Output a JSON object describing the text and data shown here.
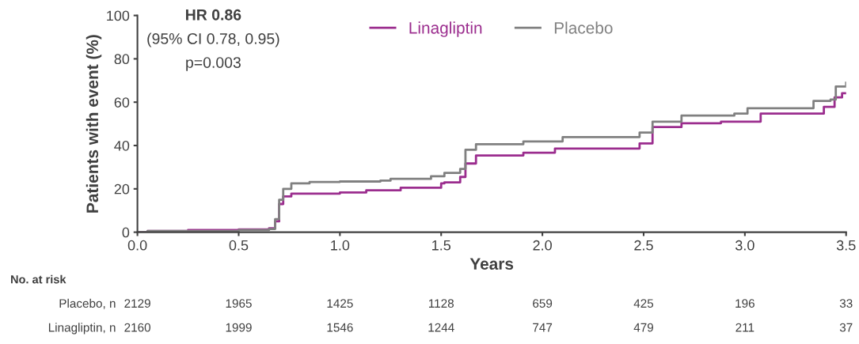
{
  "chart_data": {
    "type": "step",
    "xlabel": "Years",
    "ylabel": "Patients with event (%)",
    "xlim": [
      0,
      3.5
    ],
    "ylim": [
      0,
      100
    ],
    "xticks": [
      {
        "value": 0,
        "label": "0.0"
      },
      0.5,
      {
        "value": 1,
        "label": "1.0"
      },
      1.5,
      {
        "value": 2,
        "label": "2.0"
      },
      2.5,
      {
        "value": 3,
        "label": "3.0"
      },
      3.5
    ],
    "yticks": [
      0,
      20,
      40,
      60,
      80,
      100
    ],
    "grid": false,
    "legend": "top",
    "series": [
      {
        "name": "Linagliptin",
        "color": "#9b2d8e",
        "x": [
          0,
          0.05,
          0.25,
          0.5,
          0.65,
          0.68,
          0.7,
          0.72,
          0.76,
          1.0,
          1.13,
          1.3,
          1.5,
          1.516,
          1.594,
          1.62,
          1.672,
          1.906,
          2.062,
          2.48,
          2.544,
          2.687,
          2.882,
          3.078,
          3.39,
          3.443,
          3.48,
          3.5
        ],
        "values": [
          0,
          0.5,
          1.0,
          1.3,
          1.8,
          5,
          13,
          16.5,
          17.8,
          18.3,
          19.3,
          20.5,
          22.5,
          23.0,
          25.5,
          31.7,
          35.4,
          36.7,
          38.6,
          41.0,
          48.5,
          50.3,
          51.0,
          54.7,
          57.8,
          62.2,
          64.1,
          64.1
        ]
      },
      {
        "name": "Placebo",
        "color": "#808080",
        "x": [
          0,
          0.05,
          0.5,
          0.65,
          0.68,
          0.7,
          0.72,
          0.76,
          0.85,
          1.0,
          1.2,
          1.25,
          1.45,
          1.516,
          1.594,
          1.62,
          1.672,
          1.906,
          2.1,
          2.48,
          2.544,
          2.687,
          2.948,
          3.013,
          3.339,
          3.423,
          3.449,
          3.5
        ],
        "values": [
          0,
          0.5,
          1.0,
          1.5,
          6,
          15,
          20,
          22.5,
          23.2,
          23.4,
          23.8,
          24.6,
          25.8,
          27.4,
          29.2,
          38.0,
          40.6,
          41.9,
          43.9,
          46.0,
          51.0,
          53.8,
          54.7,
          57.2,
          60.6,
          61.2,
          67.2,
          69.0
        ]
      }
    ],
    "annotations": [
      "HR 0.86",
      "(95% CI 0.78, 0.95)",
      "p=0.003",
      "No. at risk",
      "Placebo, n",
      "2129",
      "1965",
      "1425",
      "1128",
      "659",
      "425",
      "196",
      "33",
      "Linagliptin, n",
      "2160",
      "1999",
      "1546",
      "1244",
      "747",
      "479",
      "211",
      "37"
    ]
  }
}
